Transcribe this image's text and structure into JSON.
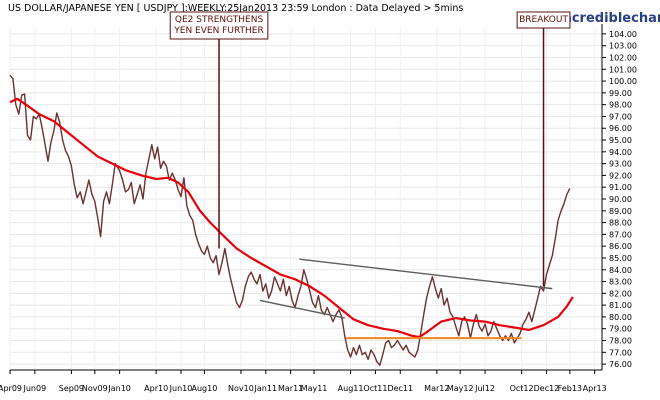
{
  "chart_data": {
    "type": "line",
    "title": "US DOLLAR/JAPANESE YEN [ USDJPY ]:WEEKLY:25Jan2013 23:59 London : Data Delayed > 5mins",
    "watermark": "www.incrediblecharts.com",
    "ylim": [
      75.5,
      104.5
    ],
    "x_range": [
      2009.25,
      2013.3
    ],
    "y_ticks": [
      "104.00",
      "103.00",
      "102.00",
      "101.00",
      "100.00",
      "99.00",
      "98.00",
      "97.00",
      "96.00",
      "95.00",
      "94.00",
      "93.00",
      "92.00",
      "91.00",
      "90.00",
      "89.00",
      "88.00",
      "87.00",
      "86.00",
      "85.00",
      "84.00",
      "83.00",
      "82.00",
      "81.00",
      "80.00",
      "79.00",
      "78.00",
      "77.00",
      "76.00"
    ],
    "x_ticks": [
      {
        "label": "Apr09",
        "t": 2009.25
      },
      {
        "label": "Jun09",
        "t": 2009.42
      },
      {
        "label": "Sep09",
        "t": 2009.67
      },
      {
        "label": "Nov09",
        "t": 2009.83
      },
      {
        "label": "Jan10",
        "t": 2010.0
      },
      {
        "label": "Apr10",
        "t": 2010.25
      },
      {
        "label": "Jun10",
        "t": 2010.42
      },
      {
        "label": "Aug10",
        "t": 2010.58
      },
      {
        "label": "Nov10",
        "t": 2010.83
      },
      {
        "label": "Jan11",
        "t": 2011.0
      },
      {
        "label": "Mar11",
        "t": 2011.17
      },
      {
        "label": "May11",
        "t": 2011.33
      },
      {
        "label": "Aug11",
        "t": 2011.58
      },
      {
        "label": "Oct11",
        "t": 2011.75
      },
      {
        "label": "Dec11",
        "t": 2011.92
      },
      {
        "label": "Mar12",
        "t": 2012.17
      },
      {
        "label": "May12",
        "t": 2012.33
      },
      {
        "label": "Jul12",
        "t": 2012.5
      },
      {
        "label": "Oct12",
        "t": 2012.75
      },
      {
        "label": "Dec12",
        "t": 2012.92
      },
      {
        "label": "Feb13",
        "t": 2013.08
      },
      {
        "label": "Apr13",
        "t": 2013.25
      }
    ],
    "series": [
      {
        "color": "#6b3030",
        "points": [
          [
            2009.25,
            100.5
          ],
          [
            2009.27,
            100.2
          ],
          [
            2009.29,
            98.0
          ],
          [
            2009.31,
            97.2
          ],
          [
            2009.33,
            98.8
          ],
          [
            2009.35,
            98.9
          ],
          [
            2009.37,
            95.4
          ],
          [
            2009.39,
            95.0
          ],
          [
            2009.41,
            97.0
          ],
          [
            2009.43,
            96.8
          ],
          [
            2009.45,
            97.2
          ],
          [
            2009.47,
            96.0
          ],
          [
            2009.49,
            94.6
          ],
          [
            2009.51,
            93.2
          ],
          [
            2009.53,
            94.8
          ],
          [
            2009.55,
            95.8
          ],
          [
            2009.57,
            97.3
          ],
          [
            2009.59,
            96.5
          ],
          [
            2009.61,
            95.0
          ],
          [
            2009.63,
            94.1
          ],
          [
            2009.65,
            93.6
          ],
          [
            2009.67,
            92.8
          ],
          [
            2009.69,
            91.2
          ],
          [
            2009.71,
            90.1
          ],
          [
            2009.73,
            90.6
          ],
          [
            2009.75,
            89.6
          ],
          [
            2009.77,
            90.6
          ],
          [
            2009.79,
            91.6
          ],
          [
            2009.81,
            90.4
          ],
          [
            2009.83,
            89.8
          ],
          [
            2009.85,
            88.4
          ],
          [
            2009.87,
            86.8
          ],
          [
            2009.89,
            89.8
          ],
          [
            2009.91,
            90.6
          ],
          [
            2009.93,
            89.6
          ],
          [
            2009.95,
            91.2
          ],
          [
            2009.97,
            93.0
          ],
          [
            2010.0,
            92.4
          ],
          [
            2010.02,
            91.6
          ],
          [
            2010.04,
            90.6
          ],
          [
            2010.06,
            90.8
          ],
          [
            2010.08,
            91.4
          ],
          [
            2010.1,
            89.6
          ],
          [
            2010.12,
            90.4
          ],
          [
            2010.14,
            91.2
          ],
          [
            2010.16,
            90.0
          ],
          [
            2010.18,
            92.2
          ],
          [
            2010.2,
            93.4
          ],
          [
            2010.22,
            94.6
          ],
          [
            2010.24,
            93.4
          ],
          [
            2010.26,
            94.4
          ],
          [
            2010.28,
            92.6
          ],
          [
            2010.3,
            93.2
          ],
          [
            2010.32,
            92.8
          ],
          [
            2010.34,
            91.6
          ],
          [
            2010.36,
            92.2
          ],
          [
            2010.38,
            91.6
          ],
          [
            2010.4,
            90.8
          ],
          [
            2010.42,
            90.2
          ],
          [
            2010.44,
            91.8
          ],
          [
            2010.46,
            89.4
          ],
          [
            2010.48,
            88.6
          ],
          [
            2010.5,
            88.2
          ],
          [
            2010.52,
            87.0
          ],
          [
            2010.54,
            86.2
          ],
          [
            2010.56,
            85.6
          ],
          [
            2010.58,
            85.3
          ],
          [
            2010.6,
            86.0
          ],
          [
            2010.62,
            85.0
          ],
          [
            2010.64,
            84.6
          ],
          [
            2010.66,
            85.2
          ],
          [
            2010.68,
            83.6
          ],
          [
            2010.7,
            84.6
          ],
          [
            2010.72,
            85.8
          ],
          [
            2010.74,
            84.4
          ],
          [
            2010.76,
            83.2
          ],
          [
            2010.78,
            82.2
          ],
          [
            2010.8,
            81.2
          ],
          [
            2010.82,
            80.8
          ],
          [
            2010.84,
            81.4
          ],
          [
            2010.86,
            82.6
          ],
          [
            2010.88,
            83.4
          ],
          [
            2010.9,
            83.8
          ],
          [
            2010.92,
            83.2
          ],
          [
            2010.94,
            82.8
          ],
          [
            2010.96,
            83.6
          ],
          [
            2010.98,
            82.2
          ],
          [
            2011.0,
            82.8
          ],
          [
            2011.02,
            81.6
          ],
          [
            2011.04,
            82.2
          ],
          [
            2011.06,
            83.4
          ],
          [
            2011.08,
            82.8
          ],
          [
            2011.1,
            82.2
          ],
          [
            2011.12,
            83.2
          ],
          [
            2011.14,
            81.8
          ],
          [
            2011.16,
            82.6
          ],
          [
            2011.18,
            81.4
          ],
          [
            2011.2,
            80.8
          ],
          [
            2011.22,
            81.8
          ],
          [
            2011.24,
            82.6
          ],
          [
            2011.26,
            84.0
          ],
          [
            2011.28,
            83.2
          ],
          [
            2011.3,
            82.2
          ],
          [
            2011.32,
            81.2
          ],
          [
            2011.34,
            80.8
          ],
          [
            2011.36,
            81.8
          ],
          [
            2011.38,
            80.6
          ],
          [
            2011.4,
            80.2
          ],
          [
            2011.42,
            80.8
          ],
          [
            2011.44,
            80.2
          ],
          [
            2011.46,
            79.6
          ],
          [
            2011.48,
            80.2
          ],
          [
            2011.5,
            80.6
          ],
          [
            2011.52,
            80.0
          ],
          [
            2011.54,
            78.4
          ],
          [
            2011.56,
            77.2
          ],
          [
            2011.58,
            76.6
          ],
          [
            2011.6,
            77.4
          ],
          [
            2011.62,
            76.8
          ],
          [
            2011.64,
            77.6
          ],
          [
            2011.66,
            76.8
          ],
          [
            2011.68,
            77.0
          ],
          [
            2011.7,
            76.4
          ],
          [
            2011.72,
            77.2
          ],
          [
            2011.74,
            76.8
          ],
          [
            2011.76,
            76.2
          ],
          [
            2011.78,
            75.9
          ],
          [
            2011.8,
            76.8
          ],
          [
            2011.82,
            77.8
          ],
          [
            2011.84,
            78.0
          ],
          [
            2011.86,
            77.4
          ],
          [
            2011.88,
            77.6
          ],
          [
            2011.9,
            78.0
          ],
          [
            2011.92,
            77.6
          ],
          [
            2011.94,
            77.2
          ],
          [
            2011.96,
            77.6
          ],
          [
            2011.98,
            77.0
          ],
          [
            2012.0,
            76.8
          ],
          [
            2012.02,
            76.6
          ],
          [
            2012.04,
            77.2
          ],
          [
            2012.06,
            78.6
          ],
          [
            2012.08,
            80.2
          ],
          [
            2012.1,
            81.6
          ],
          [
            2012.12,
            82.6
          ],
          [
            2012.14,
            83.4
          ],
          [
            2012.16,
            82.4
          ],
          [
            2012.18,
            81.6
          ],
          [
            2012.2,
            82.4
          ],
          [
            2012.22,
            81.0
          ],
          [
            2012.24,
            81.6
          ],
          [
            2012.26,
            80.4
          ],
          [
            2012.28,
            80.0
          ],
          [
            2012.3,
            79.2
          ],
          [
            2012.32,
            78.4
          ],
          [
            2012.34,
            79.6
          ],
          [
            2012.36,
            80.0
          ],
          [
            2012.38,
            79.4
          ],
          [
            2012.4,
            78.2
          ],
          [
            2012.42,
            79.4
          ],
          [
            2012.44,
            80.2
          ],
          [
            2012.46,
            79.2
          ],
          [
            2012.48,
            78.8
          ],
          [
            2012.5,
            79.4
          ],
          [
            2012.52,
            78.4
          ],
          [
            2012.54,
            78.8
          ],
          [
            2012.56,
            79.6
          ],
          [
            2012.58,
            79.0
          ],
          [
            2012.6,
            78.4
          ],
          [
            2012.62,
            78.0
          ],
          [
            2012.64,
            78.4
          ],
          [
            2012.66,
            78.0
          ],
          [
            2012.68,
            78.6
          ],
          [
            2012.7,
            77.8
          ],
          [
            2012.72,
            78.2
          ],
          [
            2012.74,
            78.6
          ],
          [
            2012.76,
            79.4
          ],
          [
            2012.78,
            79.8
          ],
          [
            2012.8,
            80.4
          ],
          [
            2012.82,
            79.6
          ],
          [
            2012.84,
            80.6
          ],
          [
            2012.86,
            81.6
          ],
          [
            2012.88,
            82.6
          ],
          [
            2012.9,
            82.2
          ],
          [
            2012.92,
            83.6
          ],
          [
            2012.94,
            84.4
          ],
          [
            2012.96,
            85.2
          ],
          [
            2012.98,
            86.6
          ],
          [
            2013.0,
            88.2
          ],
          [
            2013.02,
            89.0
          ],
          [
            2013.04,
            89.6
          ],
          [
            2013.06,
            90.4
          ],
          [
            2013.08,
            90.9
          ]
        ]
      },
      {
        "color": "#e8000b",
        "points": [
          [
            2009.25,
            98.2
          ],
          [
            2009.3,
            98.5
          ],
          [
            2009.36,
            98.0
          ],
          [
            2009.45,
            97.2
          ],
          [
            2009.55,
            96.6
          ],
          [
            2009.65,
            95.6
          ],
          [
            2009.75,
            94.6
          ],
          [
            2009.85,
            93.6
          ],
          [
            2009.95,
            93.0
          ],
          [
            2010.05,
            92.4
          ],
          [
            2010.15,
            92.0
          ],
          [
            2010.25,
            91.7
          ],
          [
            2010.33,
            91.8
          ],
          [
            2010.4,
            91.4
          ],
          [
            2010.47,
            90.6
          ],
          [
            2010.55,
            89.0
          ],
          [
            2010.62,
            88.0
          ],
          [
            2010.7,
            87.0
          ],
          [
            2010.8,
            85.8
          ],
          [
            2010.9,
            85.0
          ],
          [
            2011.0,
            84.3
          ],
          [
            2011.1,
            83.6
          ],
          [
            2011.2,
            83.2
          ],
          [
            2011.3,
            82.6
          ],
          [
            2011.4,
            81.8
          ],
          [
            2011.5,
            80.8
          ],
          [
            2011.6,
            79.8
          ],
          [
            2011.7,
            79.3
          ],
          [
            2011.8,
            79.0
          ],
          [
            2011.9,
            78.8
          ],
          [
            2012.0,
            78.4
          ],
          [
            2012.05,
            78.3
          ],
          [
            2012.1,
            78.7
          ],
          [
            2012.2,
            79.6
          ],
          [
            2012.3,
            79.9
          ],
          [
            2012.4,
            79.7
          ],
          [
            2012.5,
            79.6
          ],
          [
            2012.6,
            79.3
          ],
          [
            2012.7,
            79.1
          ],
          [
            2012.8,
            78.9
          ],
          [
            2012.9,
            79.3
          ],
          [
            2013.0,
            80.0
          ],
          [
            2013.06,
            80.9
          ],
          [
            2013.1,
            81.7
          ]
        ]
      }
    ],
    "trendlines": [
      {
        "color": "#5c5c5c",
        "from": [
          2011.23,
          84.9
        ],
        "to": [
          2012.96,
          82.4
        ]
      },
      {
        "color": "#5c5c5c",
        "from": [
          2010.96,
          81.4
        ],
        "to": [
          2011.54,
          79.9
        ]
      }
    ],
    "support_line": {
      "color": "#f0861f",
      "from": [
        2011.55,
        78.2
      ],
      "to": [
        2012.75,
        78.2
      ]
    },
    "annotations": [
      {
        "lines": [
          "QE2 STRENGTHENS",
          "YEN EVEN FURTHER"
        ],
        "x": 2010.68,
        "y_end": 85.8
      },
      {
        "lines": [
          "BREAKOUT"
        ],
        "x": 2012.9,
        "y_end": 82.6
      }
    ]
  }
}
